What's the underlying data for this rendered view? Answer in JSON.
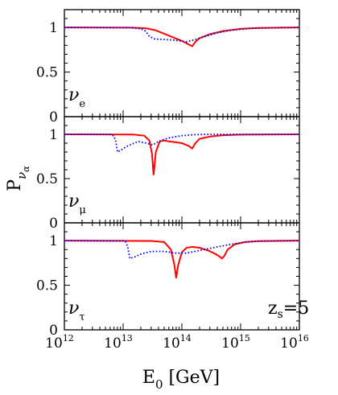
{
  "chart_data": {
    "type": "line",
    "x_scale": "log",
    "xlim": [
      1000000000000.0,
      1e+16
    ],
    "x_ticks": [
      {
        "base": "10",
        "exp": "12"
      },
      {
        "base": "10",
        "exp": "13"
      },
      {
        "base": "10",
        "exp": "14"
      },
      {
        "base": "10",
        "exp": "15"
      },
      {
        "base": "10",
        "exp": "16"
      }
    ],
    "xlabel": {
      "main": "E",
      "sub": "0",
      "unit": " [GeV]"
    },
    "ylabel": {
      "main": "P",
      "sub": "ν",
      "subsub": "α"
    },
    "annotation": {
      "main": "z",
      "sub": "s",
      "rest": "=5"
    },
    "panels": [
      {
        "label": {
          "main": "ν",
          "sub": "e"
        },
        "ylim": [
          0,
          1.2
        ],
        "y_ticks": [
          "0",
          "0.5",
          "1"
        ],
        "series": [
          {
            "style": "solid",
            "color": "#ff0000",
            "x": [
              1000000000000.0,
              15000000000000.0,
              25000000000000.0,
              35000000000000.0,
              50000000000000.0,
              70000000000000.0,
              100000000000000.0,
              130000000000000.0,
              150000000000000.0,
              170000000000000.0,
              200000000000000.0,
              300000000000000.0,
              500000000000000.0,
              1000000000000000.0,
              2000000000000000.0,
              1e+16
            ],
            "y": [
              1.0,
              0.998,
              0.99,
              0.97,
              0.93,
              0.89,
              0.85,
              0.81,
              0.79,
              0.84,
              0.88,
              0.925,
              0.96,
              0.985,
              0.995,
              1.0
            ]
          },
          {
            "style": "dotted",
            "color": "#0000ff",
            "x": [
              1000000000000.0,
              13000000000000.0,
              20000000000000.0,
              24000000000000.0,
              28000000000000.0,
              35000000000000.0,
              50000000000000.0,
              70000000000000.0,
              90000000000000.0,
              120000000000000.0,
              160000000000000.0,
              250000000000000.0,
              400000000000000.0,
              700000000000000.0,
              1500000000000000.0,
              5000000000000000.0,
              1e+16
            ],
            "y": [
              1.0,
              0.998,
              0.985,
              0.96,
              0.9,
              0.87,
              0.865,
              0.86,
              0.85,
              0.84,
              0.86,
              0.9,
              0.94,
              0.97,
              0.99,
              0.999,
              1.0
            ]
          }
        ]
      },
      {
        "label": {
          "main": "ν",
          "sub": "μ"
        },
        "ylim": [
          0,
          1.2
        ],
        "y_ticks": [
          "0",
          "0.5",
          "1"
        ],
        "series": [
          {
            "style": "solid",
            "color": "#ff0000",
            "x": [
              1000000000000.0,
              15000000000000.0,
              23000000000000.0,
              28000000000000.0,
              31000000000000.0,
              33000000000000.0,
              36000000000000.0,
              42000000000000.0,
              50000000000000.0,
              60000000000000.0,
              80000000000000.0,
              100000000000000.0,
              130000000000000.0,
              150000000000000.0,
              170000000000000.0,
              200000000000000.0,
              300000000000000.0,
              500000000000000.0,
              1000000000000000.0,
              1e+16
            ],
            "y": [
              1.0,
              0.998,
              0.985,
              0.93,
              0.78,
              0.54,
              0.8,
              0.92,
              0.93,
              0.92,
              0.91,
              0.9,
              0.87,
              0.84,
              0.9,
              0.95,
              0.975,
              0.99,
              0.997,
              1.0
            ]
          },
          {
            "style": "dotted",
            "color": "#0000ff",
            "x": [
              1000000000000.0,
              6000000000000.0,
              7000000000000.0,
              7500000000000.0,
              8000000000000.0,
              9000000000000.0,
              12000000000000.0,
              18000000000000.0,
              25000000000000.0,
              32000000000000.0,
              40000000000000.0,
              60000000000000.0,
              100000000000000.0,
              150000000000000.0,
              200000000000000.0,
              300000000000000.0,
              1000000000000000.0,
              1e+16
            ],
            "y": [
              1.0,
              1.0,
              0.98,
              0.92,
              0.8,
              0.82,
              0.87,
              0.92,
              0.9,
              0.88,
              0.92,
              0.96,
              0.985,
              0.995,
              0.998,
              1.0,
              1.0,
              1.0
            ]
          }
        ]
      },
      {
        "label": {
          "main": "ν",
          "sub": "τ"
        },
        "ylim": [
          0,
          1.2
        ],
        "y_ticks": [
          "0",
          "0.5",
          "1"
        ],
        "series": [
          {
            "style": "solid",
            "color": "#ff0000",
            "x": [
              1000000000000.0,
              30000000000000.0,
              50000000000000.0,
              65000000000000.0,
              75000000000000.0,
              80000000000000.0,
              86000000000000.0,
              100000000000000.0,
              120000000000000.0,
              150000000000000.0,
              200000000000000.0,
              280000000000000.0,
              350000000000000.0,
              420000000000000.0,
              480000000000000.0,
              530000000000000.0,
              600000000000000.0,
              800000000000000.0,
              1200000000000000.0,
              2000000000000000.0,
              1e+16
            ],
            "y": [
              1.0,
              0.997,
              0.985,
              0.9,
              0.72,
              0.58,
              0.72,
              0.87,
              0.92,
              0.93,
              0.92,
              0.89,
              0.86,
              0.83,
              0.8,
              0.83,
              0.9,
              0.96,
              0.985,
              0.995,
              1.0
            ]
          },
          {
            "style": "dotted",
            "color": "#0000ff",
            "x": [
              1000000000000.0,
              10000000000000.0,
              11000000000000.0,
              12000000000000.0,
              13000000000000.0,
              16000000000000.0,
              20000000000000.0,
              30000000000000.0,
              50000000000000.0,
              80000000000000.0,
              120000000000000.0,
              200000000000000.0,
              400000000000000.0,
              700000000000000.0,
              1200000000000000.0,
              2000000000000000.0,
              4000000000000000.0,
              1e+16
            ],
            "y": [
              1.0,
              1.0,
              0.99,
              0.93,
              0.8,
              0.82,
              0.85,
              0.88,
              0.88,
              0.86,
              0.86,
              0.89,
              0.93,
              0.96,
              0.985,
              0.995,
              0.999,
              1.0
            ]
          }
        ]
      }
    ]
  }
}
